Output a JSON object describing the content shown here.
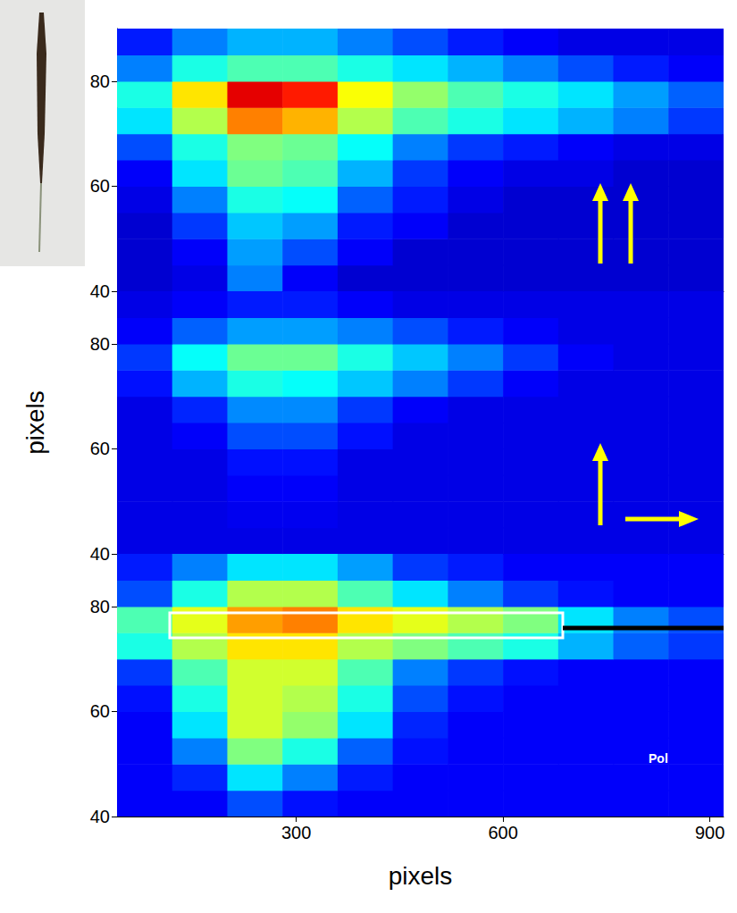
{
  "chart_data": [
    {
      "type": "heatmap",
      "xlim": [
        40,
        920
      ],
      "ylim": [
        40,
        90
      ],
      "yticks": [
        40,
        60,
        80
      ],
      "tick_labels": "y",
      "grid": false,
      "x_bins": [
        40,
        120,
        200,
        280,
        360,
        440,
        520,
        600,
        680,
        760,
        840,
        920
      ],
      "y_bins": [
        40,
        45,
        50,
        55,
        60,
        65,
        70,
        75,
        80,
        85,
        90
      ],
      "zlim": [
        0,
        100
      ],
      "z": [
        [
          8,
          10,
          25,
          12,
          8,
          8,
          8,
          8,
          8,
          8,
          8
        ],
        [
          8,
          12,
          28,
          20,
          12,
          8,
          8,
          8,
          8,
          8,
          8
        ],
        [
          8,
          18,
          32,
          28,
          15,
          12,
          8,
          8,
          8,
          8,
          8
        ],
        [
          10,
          25,
          40,
          38,
          22,
          15,
          10,
          8,
          8,
          8,
          8
        ],
        [
          12,
          35,
          48,
          45,
          30,
          18,
          12,
          10,
          10,
          8,
          8
        ],
        [
          20,
          40,
          50,
          48,
          38,
          25,
          18,
          15,
          12,
          10,
          10
        ],
        [
          35,
          55,
          75,
          70,
          55,
          45,
          40,
          35,
          30,
          25,
          18
        ],
        [
          40,
          65,
          90,
          85,
          62,
          52,
          45,
          40,
          35,
          28,
          22
        ],
        [
          25,
          40,
          45,
          45,
          40,
          35,
          30,
          25,
          20,
          15,
          12
        ],
        [
          15,
          25,
          30,
          30,
          25,
          20,
          15,
          12,
          10,
          10,
          10
        ]
      ]
    },
    {
      "type": "heatmap",
      "xlim": [
        40,
        920
      ],
      "ylim": [
        40,
        90
      ],
      "yticks": [
        40,
        60,
        80
      ],
      "ylabel": "pixels",
      "tick_labels": "y",
      "grid": false,
      "x_bins": [
        40,
        120,
        200,
        280,
        360,
        440,
        520,
        600,
        680,
        760,
        840,
        920
      ],
      "y_bins": [
        40,
        45,
        50,
        55,
        60,
        65,
        70,
        75,
        80,
        85,
        90
      ],
      "zlim": [
        0,
        100
      ],
      "z": [
        [
          10,
          10,
          10,
          10,
          10,
          10,
          10,
          10,
          10,
          10,
          10
        ],
        [
          10,
          10,
          11,
          11,
          10,
          10,
          10,
          10,
          10,
          10,
          10
        ],
        [
          10,
          10,
          12,
          12,
          10,
          10,
          10,
          10,
          10,
          10,
          10
        ],
        [
          10,
          10,
          14,
          14,
          10,
          10,
          10,
          10,
          10,
          10,
          10
        ],
        [
          10,
          12,
          20,
          20,
          14,
          10,
          10,
          10,
          10,
          10,
          10
        ],
        [
          10,
          16,
          26,
          26,
          18,
          12,
          10,
          10,
          10,
          10,
          10
        ],
        [
          14,
          30,
          40,
          38,
          32,
          25,
          18,
          12,
          10,
          10,
          10
        ],
        [
          18,
          38,
          48,
          48,
          40,
          32,
          25,
          18,
          12,
          10,
          10
        ],
        [
          12,
          22,
          28,
          28,
          25,
          20,
          15,
          12,
          10,
          10,
          10
        ],
        [
          10,
          12,
          15,
          15,
          12,
          10,
          10,
          10,
          10,
          10,
          10
        ]
      ]
    },
    {
      "type": "heatmap",
      "xlim": [
        40,
        920
      ],
      "xticks": [
        300,
        600,
        900
      ],
      "ylim": [
        40,
        90
      ],
      "yticks": [
        40,
        60,
        80
      ],
      "xlabel": "pixels",
      "grid": false,
      "annotations": [
        "Pol"
      ],
      "x_bins": [
        40,
        120,
        200,
        280,
        360,
        440,
        520,
        600,
        680,
        760,
        840,
        920
      ],
      "y_bins": [
        40,
        45,
        50,
        55,
        60,
        65,
        70,
        75,
        80,
        85,
        90
      ],
      "zlim": [
        0,
        100
      ],
      "z": [
        [
          12,
          12,
          20,
          14,
          12,
          12,
          12,
          12,
          12,
          12,
          12
        ],
        [
          12,
          16,
          35,
          25,
          15,
          12,
          12,
          12,
          12,
          12,
          12
        ],
        [
          12,
          25,
          50,
          40,
          22,
          14,
          12,
          12,
          12,
          12,
          12
        ],
        [
          12,
          35,
          58,
          52,
          35,
          16,
          12,
          12,
          12,
          12,
          12
        ],
        [
          14,
          40,
          58,
          55,
          40,
          20,
          14,
          12,
          12,
          12,
          12
        ],
        [
          18,
          45,
          58,
          58,
          45,
          25,
          18,
          14,
          12,
          12,
          12
        ],
        [
          40,
          55,
          65,
          65,
          55,
          50,
          45,
          40,
          30,
          22,
          18
        ],
        [
          45,
          60,
          72,
          75,
          65,
          60,
          55,
          50,
          35,
          25,
          20
        ],
        [
          20,
          40,
          55,
          55,
          45,
          35,
          25,
          18,
          14,
          12,
          12
        ],
        [
          15,
          25,
          35,
          35,
          28,
          18,
          15,
          12,
          12,
          12,
          12
        ]
      ]
    }
  ]
}
